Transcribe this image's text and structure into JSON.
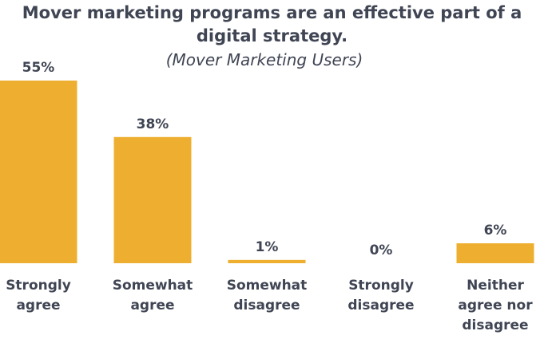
{
  "chart_data": {
    "type": "bar",
    "title": "Mover marketing programs are an effective part of a digital strategy.",
    "subtitle": "(Mover Marketing Users)",
    "categories": [
      [
        "Strongly",
        "agree"
      ],
      [
        "Somewhat",
        "agree"
      ],
      [
        "Somewhat",
        "disagree"
      ],
      [
        "Strongly",
        "disagree"
      ],
      [
        "Neither",
        "agree nor",
        "disagree"
      ]
    ],
    "values": [
      55,
      38,
      1,
      0,
      6
    ],
    "value_labels": [
      "55%",
      "38%",
      "1%",
      "0%",
      "6%"
    ],
    "bar_color": "#EEAF30",
    "ylim": [
      0,
      55
    ],
    "grid": false,
    "legend": "none"
  }
}
